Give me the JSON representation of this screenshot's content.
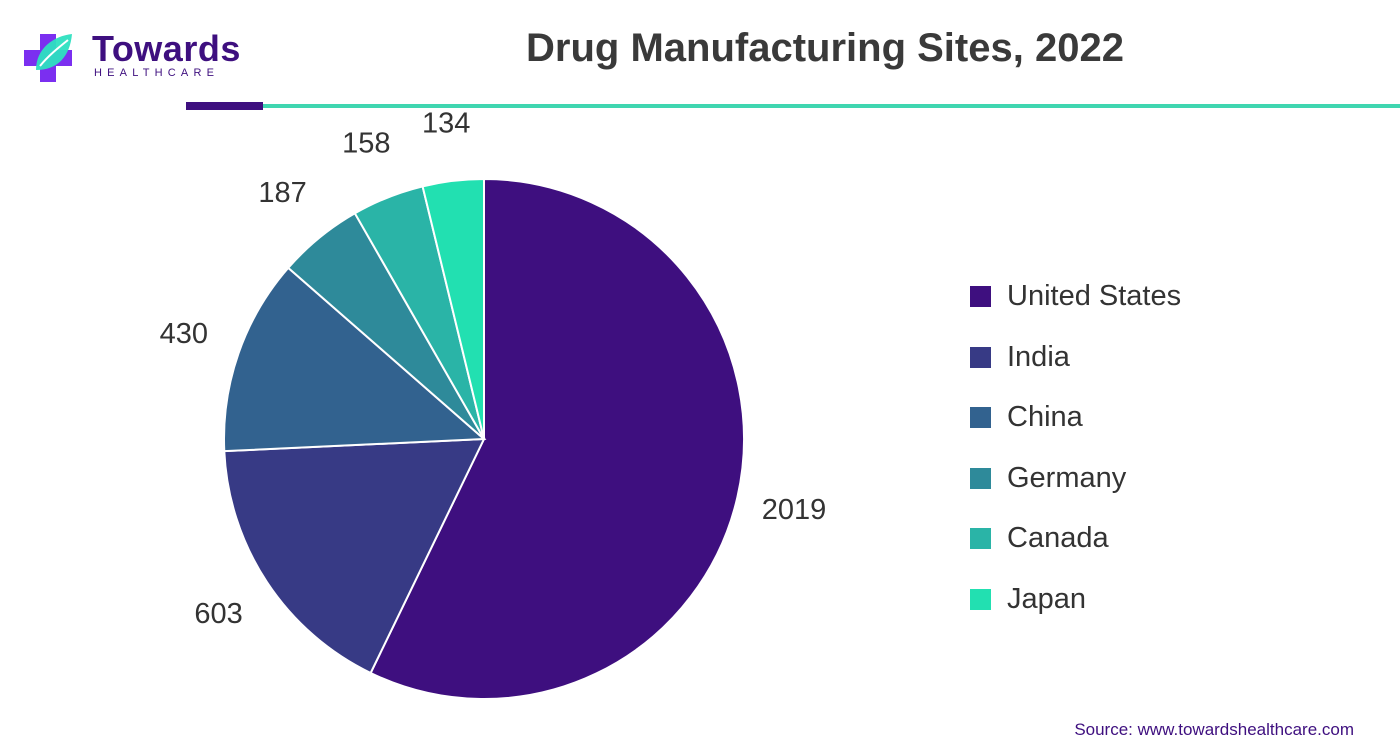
{
  "brand": {
    "name": "Towards",
    "tagline": "HEALTHCARE"
  },
  "chart_data": {
    "type": "pie",
    "title": "Drug Manufacturing Sites, 2022",
    "categories": [
      "United States",
      "India",
      "China",
      "Germany",
      "Canada",
      "Japan"
    ],
    "values": [
      2019,
      603,
      430,
      187,
      158,
      134
    ],
    "colors": [
      "#3e0f7f",
      "#373a85",
      "#32628f",
      "#2e8a9a",
      "#2ab4a7",
      "#22e0b1"
    ],
    "start_angle": "12 o'clock",
    "direction": "clockwise",
    "data_labels": true,
    "legend_position": "right"
  },
  "source": "Source: www.towardshealthcare.com"
}
